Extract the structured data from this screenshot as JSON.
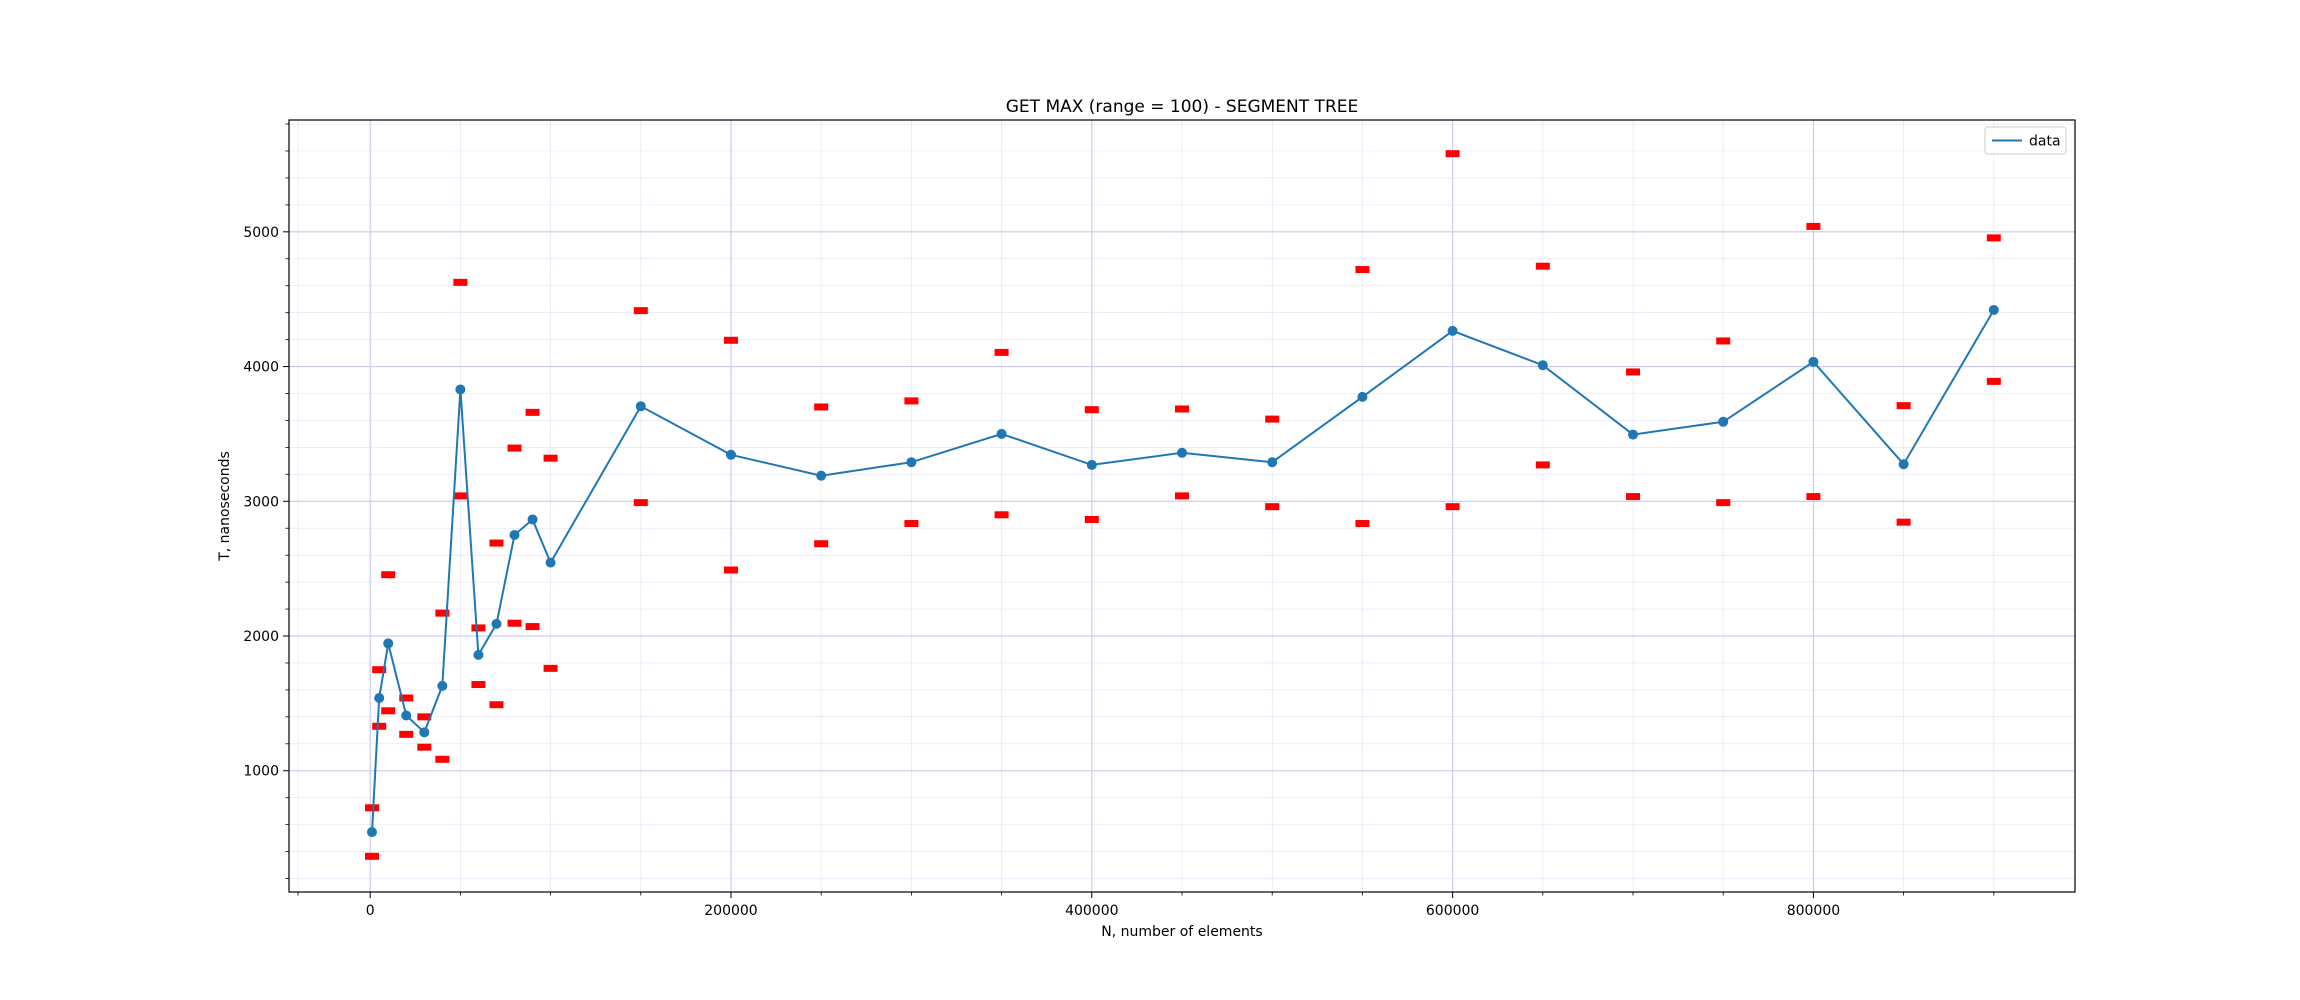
{
  "chart_data": {
    "type": "line",
    "title": "GET MAX (range = 100) - SEGMENT TREE",
    "xlabel": "N, number of elements",
    "ylabel": "T, nanoseconds",
    "xlim": [
      -45000,
      945000
    ],
    "ylim": [
      100,
      5830
    ],
    "x_ticks": [
      0,
      200000,
      400000,
      600000,
      800000
    ],
    "x_minor_ticks": [
      -40000,
      50000,
      100000,
      150000,
      250000,
      300000,
      350000,
      450000,
      500000,
      550000,
      650000,
      700000,
      750000,
      850000,
      900000
    ],
    "y_ticks": [
      1000,
      2000,
      3000,
      4000,
      5000
    ],
    "y_minor_ticks": [
      200,
      400,
      600,
      800,
      1200,
      1400,
      1600,
      1800,
      2200,
      2400,
      2600,
      2800,
      3200,
      3400,
      3600,
      3800,
      4200,
      4400,
      4600,
      4800,
      5200,
      5400,
      5600,
      5800
    ],
    "grid": true,
    "legend_position": "top-right",
    "colors": {
      "line": "#1f77b4",
      "error_marker": "#ff0000",
      "grid": "#c8c8ee",
      "axes": "#000000"
    },
    "series": [
      {
        "name": "data",
        "x": [
          1000,
          5000,
          10000,
          20000,
          30000,
          40000,
          50000,
          60000,
          70000,
          80000,
          90000,
          100000,
          150000,
          200000,
          250000,
          300000,
          350000,
          400000,
          450000,
          500000,
          550000,
          600000,
          650000,
          700000,
          750000,
          800000,
          850000,
          900000
        ],
        "y": [
          545,
          1540,
          1945,
          1410,
          1285,
          1630,
          3830,
          1860,
          2090,
          2750,
          2865,
          2545,
          3705,
          3345,
          3190,
          3290,
          3500,
          3270,
          3360,
          3290,
          3775,
          4265,
          4010,
          3495,
          3590,
          4035,
          3275,
          4420
        ]
      }
    ],
    "bounds": {
      "upper": [
        725,
        1750,
        2455,
        1540,
        1400,
        2170,
        4625,
        2060,
        2690,
        3395,
        3660,
        3320,
        4415,
        4195,
        3700,
        3745,
        4105,
        3680,
        3685,
        3610,
        4720,
        5580,
        4745,
        3960,
        4190,
        5040,
        3710,
        4955
      ],
      "lower": [
        365,
        1330,
        1445,
        1270,
        1175,
        1085,
        3040,
        1640,
        1490,
        2095,
        2070,
        1760,
        2990,
        2490,
        2685,
        2835,
        2900,
        2865,
        3040,
        2960,
        2835,
        2960,
        3270,
        3035,
        2990,
        3035,
        2845,
        3890
      ]
    }
  }
}
